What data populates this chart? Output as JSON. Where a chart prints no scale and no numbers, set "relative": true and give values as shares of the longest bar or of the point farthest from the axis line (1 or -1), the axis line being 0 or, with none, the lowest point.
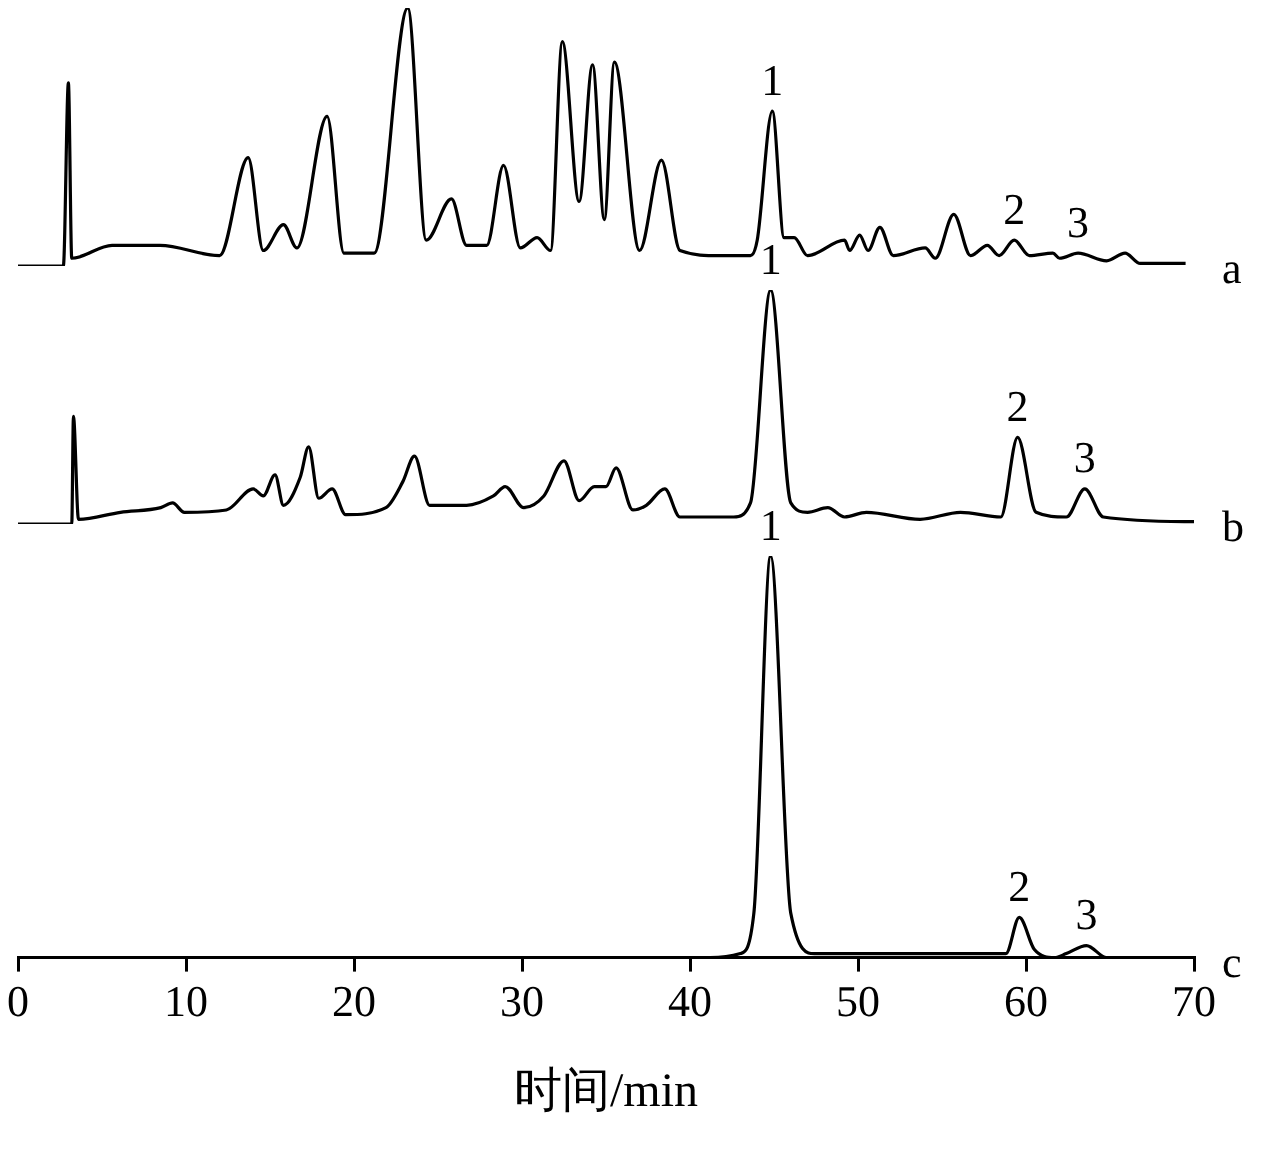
{
  "chart_data": [
    {
      "type": "line",
      "relative": true,
      "xlim": [
        0,
        70
      ],
      "xticks": [
        0,
        10,
        20,
        30,
        40,
        50,
        60,
        70
      ],
      "tick_labels": false,
      "marker": "none",
      "line_style": "solid",
      "x": [
        0,
        2.7,
        3.0,
        3.2,
        5.6,
        8.45,
        12.0,
        13.7,
        14.6,
        15.8,
        16.6,
        18.4,
        19.4,
        21.2,
        23.2,
        24.3,
        25.8,
        26.7,
        27.9,
        28.9,
        29.9,
        30.9,
        31.7,
        32.4,
        33.4,
        34.2,
        34.9,
        35.5,
        37.0,
        38.3,
        39.4,
        41.8,
        43.6,
        44.0,
        44.9,
        45.6,
        46.2,
        47.0,
        49.2,
        49.5,
        50.1,
        50.6,
        51.3,
        52.1,
        54.0,
        54.6,
        55.7,
        56.7,
        57.7,
        58.4,
        59.3,
        60.2,
        61.6,
        62.0,
        63.1,
        64.8,
        65.9,
        66.8,
        69.5
      ],
      "series": [
        {
          "name": "a",
          "color": "#000000",
          "values": [
            0,
            0,
            0.71,
            0.03,
            0.08,
            0.08,
            0.04,
            0.42,
            0.06,
            0.16,
            0.07,
            0.58,
            0.05,
            0.05,
            1,
            0.1,
            0.26,
            0.08,
            0.08,
            0.39,
            0.07,
            0.11,
            0.06,
            0.87,
            0.25,
            0.78,
            0.18,
            0.79,
            0.06,
            0.41,
            0.06,
            0.04,
            0.04,
            0.1,
            0.6,
            0.11,
            0.11,
            0.04,
            0.1,
            0.06,
            0.12,
            0.06,
            0.15,
            0.04,
            0.07,
            0.03,
            0.2,
            0.04,
            0.08,
            0.04,
            0.1,
            0.04,
            0.05,
            0.03,
            0.05,
            0.02,
            0.05,
            0.01,
            0.01
          ]
        }
      ],
      "annotations": [
        {
          "text": "1",
          "x": 44.9,
          "y": 0.6
        },
        {
          "text": "2",
          "x": 59.3,
          "y": 0.1
        },
        {
          "text": "3",
          "x": 63.1,
          "y": 0.05
        }
      ]
    },
    {
      "type": "line",
      "relative": true,
      "xlim": [
        0,
        70
      ],
      "xticks": [
        0,
        10,
        20,
        30,
        40,
        50,
        60,
        70
      ],
      "tick_labels": false,
      "marker": "none",
      "line_style": "solid",
      "x": [
        0,
        3.2,
        3.3,
        3.6,
        6.1,
        8.5,
        9.2,
        9.9,
        12.4,
        14.0,
        14.6,
        15.3,
        15.8,
        16.8,
        17.3,
        17.9,
        18.7,
        19.5,
        21.9,
        22.9,
        23.6,
        24.5,
        26.7,
        28.3,
        29.0,
        30.1,
        31.3,
        32.5,
        33.4,
        34.3,
        35.0,
        35.6,
        36.6,
        37.4,
        38.5,
        39.4,
        42.6,
        43.6,
        44.8,
        46.0,
        47.0,
        48.2,
        49.2,
        50.5,
        53.7,
        56.1,
        58.5,
        59.5,
        60.6,
        62.4,
        63.5,
        64.6,
        70.0
      ],
      "series": [
        {
          "name": "b",
          "color": "#000000",
          "values": [
            0,
            0,
            0.46,
            0.02,
            0.05,
            0.07,
            0.09,
            0.05,
            0.06,
            0.15,
            0.12,
            0.21,
            0.08,
            0.2,
            0.33,
            0.11,
            0.15,
            0.04,
            0.07,
            0.18,
            0.29,
            0.08,
            0.08,
            0.12,
            0.16,
            0.07,
            0.12,
            0.27,
            0.1,
            0.16,
            0.16,
            0.24,
            0.06,
            0.08,
            0.15,
            0.03,
            0.03,
            0.09,
            1,
            0.09,
            0.05,
            0.07,
            0.03,
            0.05,
            0.02,
            0.05,
            0.03,
            0.37,
            0.05,
            0.03,
            0.15,
            0.03,
            0.01
          ]
        }
      ],
      "annotations": [
        {
          "text": "1",
          "x": 44.8,
          "y": 1
        },
        {
          "text": "2",
          "x": 59.5,
          "y": 0.37
        },
        {
          "text": "3",
          "x": 63.5,
          "y": 0.15
        }
      ]
    },
    {
      "type": "line",
      "relative": true,
      "xlim": [
        0,
        70
      ],
      "xticks": [
        0,
        10,
        20,
        30,
        40,
        50,
        60,
        70
      ],
      "tick_labels": "x",
      "xlabel": "时间/min",
      "marker": "none",
      "line_style": "solid",
      "x": [
        0,
        41.2,
        43.0,
        43.8,
        44.8,
        46.0,
        47.4,
        58.8,
        59.6,
        60.5,
        61.7,
        62.4,
        63.6,
        64.8,
        70.0
      ],
      "series": [
        {
          "name": "c",
          "color": "#000000",
          "values": [
            0,
            0,
            0.01,
            0.11,
            1,
            0.11,
            0.01,
            0.01,
            0.1,
            0.02,
            0,
            0.01,
            0.03,
            0,
            0
          ]
        }
      ],
      "annotations": [
        {
          "text": "1",
          "x": 44.8,
          "y": 1
        },
        {
          "text": "2",
          "x": 59.6,
          "y": 0.1
        },
        {
          "text": "3",
          "x": 63.6,
          "y": 0.03
        }
      ]
    }
  ]
}
